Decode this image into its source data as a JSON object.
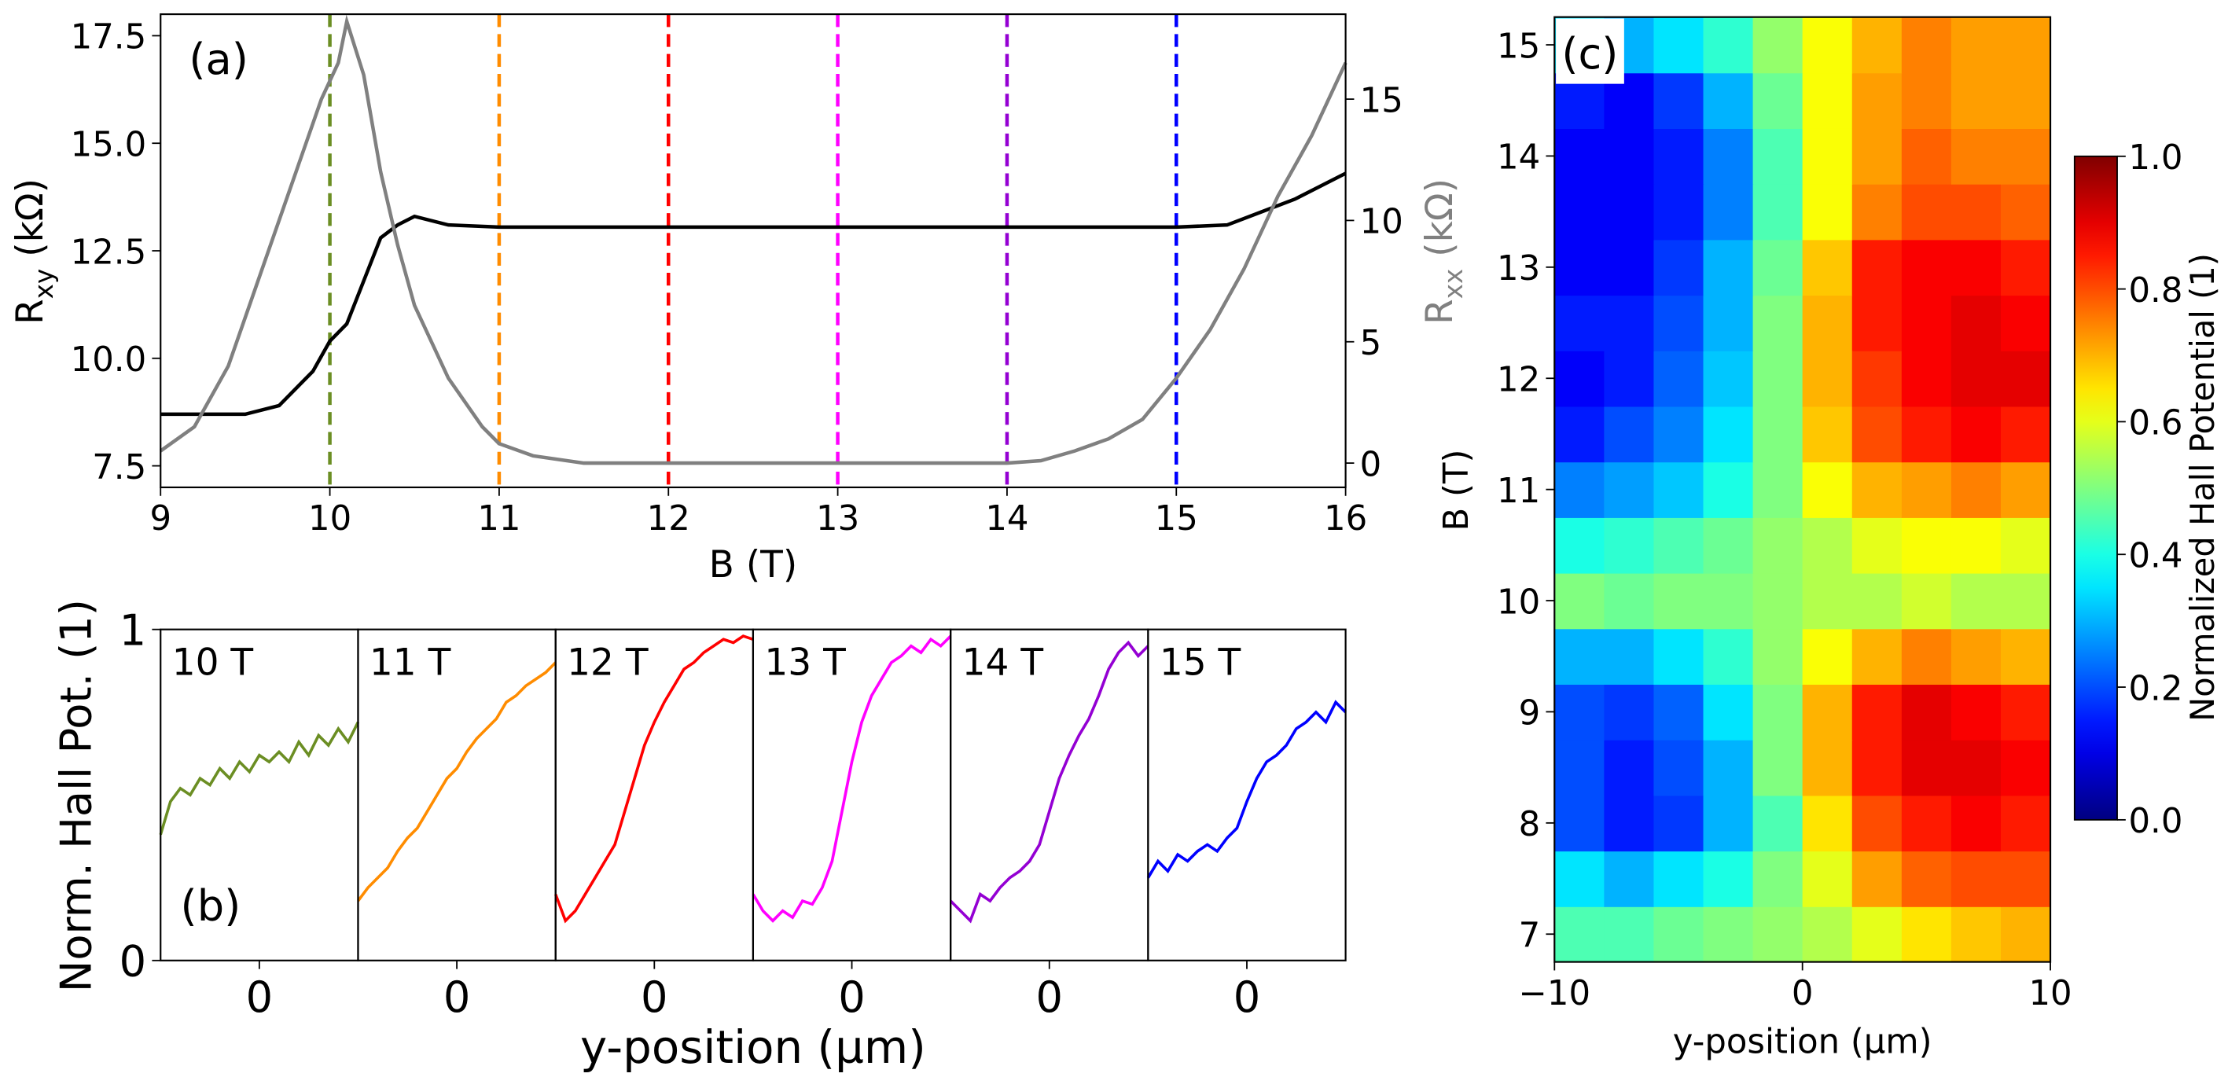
{
  "chart_data": [
    {
      "type": "line",
      "panel_label": "(a)",
      "xlabel": "B (T)",
      "ylabel": [
        "R",
        "xy",
        " (kΩ)"
      ],
      "y2label": [
        "R",
        "xx",
        " (kΩ)"
      ],
      "xlim": [
        9,
        16
      ],
      "xticks": [
        9,
        10,
        11,
        12,
        13,
        14,
        15,
        16
      ],
      "ylim": [
        7,
        18
      ],
      "yticks": [
        7.5,
        {
          "value": 10,
          "label": "10.0"
        },
        12.5,
        {
          "value": 15,
          "label": "15.0"
        },
        17.5
      ],
      "y2lim": [
        -1,
        18.5
      ],
      "y2ticks": [
        0,
        5,
        10,
        15
      ],
      "series": [
        {
          "color": "#000000",
          "x": [
            9,
            9.5,
            9.7,
            9.9,
            10,
            10.1,
            10.2,
            10.3,
            10.4,
            10.5,
            10.7,
            11,
            12,
            13,
            14,
            15,
            15.3,
            15.5,
            15.7,
            16
          ],
          "values": [
            8.7,
            8.7,
            8.9,
            9.7,
            10.4,
            10.8,
            11.8,
            12.8,
            13.1,
            13.3,
            13.1,
            13.05,
            13.05,
            13.05,
            13.05,
            13.05,
            13.1,
            13.4,
            13.7,
            14.3
          ]
        },
        {
          "color": "#808080",
          "axis": "y2",
          "x": [
            9,
            9.2,
            9.4,
            9.6,
            9.8,
            9.95,
            10.05,
            10.1,
            10.2,
            10.3,
            10.4,
            10.5,
            10.7,
            10.9,
            11,
            11.2,
            11.5,
            12,
            13,
            14,
            14.2,
            14.4,
            14.6,
            14.8,
            15,
            15.2,
            15.4,
            15.6,
            15.8,
            16
          ],
          "values": [
            0.5,
            1.5,
            4,
            8,
            12,
            15,
            16.5,
            18.2,
            16,
            12,
            9,
            6.5,
            3.5,
            1.5,
            0.8,
            0.3,
            0,
            0,
            0,
            0,
            0.1,
            0.5,
            1,
            1.8,
            3.5,
            5.5,
            8,
            11,
            13.5,
            16.5
          ]
        }
      ],
      "vlines": {
        "x": [
          10,
          11,
          12,
          13,
          14,
          15
        ],
        "colors": [
          "#6b8e23",
          "#ff8c00",
          "#ff0000",
          "#ff00ff",
          "#9400d3",
          "#0000ff"
        ]
      }
    },
    {
      "type": "multi_panel_line",
      "panel_label": "(b)",
      "ylabel": "Norm. Hall Pot. (1)",
      "xlabel": "y-position (µm)",
      "ylim": [
        0,
        1
      ],
      "yticks": [
        0,
        1
      ],
      "xlim": [
        -10,
        10
      ],
      "xticks": [
        0
      ],
      "x": [
        -10,
        -9,
        -8,
        -7,
        -6,
        -5,
        -4,
        -3,
        -2,
        -1,
        0,
        1,
        2,
        3,
        4,
        5,
        6,
        7,
        8,
        9,
        10
      ],
      "series": [
        {
          "name": "10 T",
          "color": "#6b8e23",
          "values": [
            0.38,
            0.48,
            0.52,
            0.5,
            0.55,
            0.53,
            0.58,
            0.55,
            0.6,
            0.57,
            0.62,
            0.6,
            0.63,
            0.6,
            0.66,
            0.62,
            0.68,
            0.65,
            0.7,
            0.66,
            0.72
          ]
        },
        {
          "name": "11 T",
          "color": "#ff8c00",
          "values": [
            0.18,
            0.22,
            0.25,
            0.28,
            0.33,
            0.37,
            0.4,
            0.45,
            0.5,
            0.55,
            0.58,
            0.63,
            0.67,
            0.7,
            0.73,
            0.78,
            0.8,
            0.83,
            0.85,
            0.87,
            0.9
          ]
        },
        {
          "name": "12 T",
          "color": "#ff0000",
          "values": [
            0.2,
            0.12,
            0.15,
            0.2,
            0.25,
            0.3,
            0.35,
            0.45,
            0.55,
            0.65,
            0.72,
            0.78,
            0.83,
            0.88,
            0.9,
            0.93,
            0.95,
            0.97,
            0.96,
            0.98,
            0.97
          ]
        },
        {
          "name": "13 T",
          "color": "#ff00ff",
          "values": [
            0.2,
            0.15,
            0.12,
            0.15,
            0.13,
            0.18,
            0.17,
            0.22,
            0.3,
            0.45,
            0.6,
            0.72,
            0.8,
            0.85,
            0.9,
            0.92,
            0.95,
            0.93,
            0.97,
            0.95,
            0.98
          ]
        },
        {
          "name": "14 T",
          "color": "#9400d3",
          "values": [
            0.18,
            0.15,
            0.12,
            0.2,
            0.18,
            0.22,
            0.25,
            0.27,
            0.3,
            0.35,
            0.45,
            0.55,
            0.62,
            0.68,
            0.73,
            0.8,
            0.88,
            0.93,
            0.96,
            0.92,
            0.95
          ]
        },
        {
          "name": "15 T",
          "color": "#0000ff",
          "values": [
            0.25,
            0.3,
            0.27,
            0.32,
            0.3,
            0.33,
            0.35,
            0.33,
            0.37,
            0.4,
            0.48,
            0.55,
            0.6,
            0.62,
            0.65,
            0.7,
            0.72,
            0.75,
            0.72,
            0.78,
            0.75
          ]
        }
      ]
    },
    {
      "type": "heatmap",
      "panel_label": "(c)",
      "xlabel": "y-position (µm)",
      "ylabel": "B (T)",
      "colormap": "jet",
      "xlim": [
        -10,
        10
      ],
      "xticks": [
        {
          "value": -10,
          "label": "−10"
        },
        0,
        10
      ],
      "ylim": [
        6.75,
        15.25
      ],
      "yticks": [
        7,
        8,
        9,
        10,
        11,
        12,
        13,
        14,
        15
      ],
      "x": [
        -9,
        -7,
        -5,
        -3,
        -1,
        1,
        3,
        5,
        7,
        9
      ],
      "y": [
        7,
        7.5,
        8,
        8.5,
        9,
        9.5,
        10,
        10.5,
        11,
        11.5,
        12,
        12.5,
        13,
        13.5,
        14,
        14.5,
        15
      ],
      "z": [
        [
          0.45,
          0.45,
          0.48,
          0.5,
          0.52,
          0.55,
          0.6,
          0.65,
          0.68,
          0.7
        ],
        [
          0.35,
          0.3,
          0.35,
          0.4,
          0.5,
          0.6,
          0.72,
          0.78,
          0.8,
          0.8
        ],
        [
          0.2,
          0.15,
          0.18,
          0.3,
          0.45,
          0.65,
          0.8,
          0.85,
          0.88,
          0.85
        ],
        [
          0.2,
          0.15,
          0.2,
          0.3,
          0.5,
          0.7,
          0.85,
          0.9,
          0.9,
          0.88
        ],
        [
          0.2,
          0.18,
          0.22,
          0.35,
          0.5,
          0.7,
          0.85,
          0.9,
          0.88,
          0.85
        ],
        [
          0.3,
          0.3,
          0.35,
          0.42,
          0.52,
          0.62,
          0.7,
          0.75,
          0.72,
          0.7
        ],
        [
          0.5,
          0.48,
          0.5,
          0.5,
          0.52,
          0.55,
          0.55,
          0.58,
          0.55,
          0.55
        ],
        [
          0.4,
          0.42,
          0.45,
          0.48,
          0.52,
          0.55,
          0.6,
          0.62,
          0.62,
          0.6
        ],
        [
          0.25,
          0.28,
          0.32,
          0.4,
          0.5,
          0.62,
          0.7,
          0.72,
          0.75,
          0.72
        ],
        [
          0.15,
          0.2,
          0.25,
          0.35,
          0.5,
          0.68,
          0.8,
          0.85,
          0.88,
          0.85
        ],
        [
          0.12,
          0.15,
          0.22,
          0.32,
          0.5,
          0.7,
          0.82,
          0.88,
          0.9,
          0.9
        ],
        [
          0.15,
          0.15,
          0.2,
          0.3,
          0.5,
          0.7,
          0.85,
          0.88,
          0.9,
          0.88
        ],
        [
          0.12,
          0.12,
          0.18,
          0.3,
          0.48,
          0.68,
          0.85,
          0.88,
          0.88,
          0.85
        ],
        [
          0.12,
          0.12,
          0.15,
          0.25,
          0.45,
          0.62,
          0.75,
          0.8,
          0.8,
          0.78
        ],
        [
          0.12,
          0.12,
          0.15,
          0.25,
          0.45,
          0.62,
          0.72,
          0.78,
          0.75,
          0.75
        ],
        [
          0.15,
          0.12,
          0.18,
          0.3,
          0.48,
          0.62,
          0.72,
          0.75,
          0.72,
          0.72
        ],
        [
          0.35,
          0.3,
          0.35,
          0.42,
          0.52,
          0.62,
          0.7,
          0.75,
          0.72,
          0.72
        ]
      ],
      "colorbar": {
        "label": "Normalized Hall Potential (1)",
        "lim": [
          0,
          1
        ],
        "ticks": [
          {
            "value": 0,
            "label": "0.0"
          },
          0.2,
          0.4,
          0.6,
          0.8,
          {
            "value": 1,
            "label": "1.0"
          }
        ]
      }
    }
  ]
}
